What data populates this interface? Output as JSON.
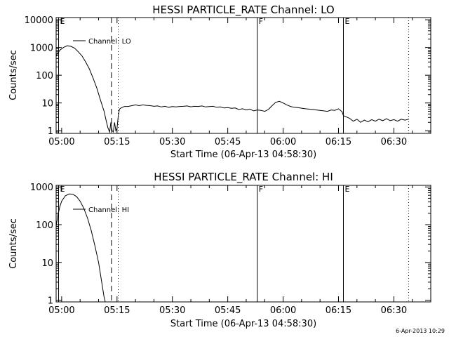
{
  "chart_data": [
    {
      "type": "line",
      "title": "HESSI PARTICLE_RATE Channel: LO",
      "xlabel": "Start Time (06-Apr-13 04:58:30)",
      "ylabel": "Counts/sec",
      "x_unit": "time (HH:MM)",
      "xlim": [
        "04:58:30",
        "06:40:00"
      ],
      "xticks": [
        "05:00",
        "05:15",
        "05:30",
        "05:45",
        "06:00",
        "06:15",
        "06:30"
      ],
      "yscale": "log",
      "ylim": [
        0.8,
        12000
      ],
      "yticks": [
        "1",
        "10",
        "100",
        "1000",
        "10000"
      ],
      "legend": {
        "label": "Channel: LO",
        "placement": "top-left"
      },
      "markers": [
        {
          "label": "E",
          "time": "04:59:10",
          "style": "solid"
        },
        {
          "label": "",
          "time": "05:13:30",
          "style": "dashed"
        },
        {
          "label": "",
          "time": "05:15:20",
          "style": "dotted"
        },
        {
          "label": "F",
          "time": "05:53:00",
          "style": "solid"
        },
        {
          "label": "E",
          "time": "06:16:20",
          "style": "solid"
        },
        {
          "label": "",
          "time": "06:34:00",
          "style": "dotted"
        }
      ],
      "series": [
        {
          "name": "Channel: LO",
          "points": [
            [
              "04:58:30",
              500
            ],
            [
              "04:59:30",
              800
            ],
            [
              "05:00:30",
              1000
            ],
            [
              "05:01:30",
              1150
            ],
            [
              "05:02:30",
              1100
            ],
            [
              "05:03:30",
              950
            ],
            [
              "05:04:30",
              700
            ],
            [
              "05:05:30",
              500
            ],
            [
              "05:06:30",
              300
            ],
            [
              "05:07:30",
              170
            ],
            [
              "05:08:30",
              80
            ],
            [
              "05:09:30",
              35
            ],
            [
              "05:10:30",
              13
            ],
            [
              "05:11:30",
              5
            ],
            [
              "05:12:00",
              2.5
            ],
            [
              "05:12:30",
              1.3
            ],
            [
              "05:13:00",
              0.9
            ],
            [
              "05:13:20",
              2.0
            ],
            [
              "05:13:40",
              1.0
            ],
            [
              "05:14:00",
              0.9
            ],
            [
              "05:14:20",
              2.0
            ],
            [
              "05:14:40",
              1.0
            ],
            [
              "05:15:00",
              1.2
            ],
            [
              "05:15:20",
              3.5
            ],
            [
              "05:15:40",
              6.0
            ],
            [
              "05:16:00",
              6.5
            ],
            [
              "05:17:00",
              7.5
            ],
            [
              "05:18:00",
              7.5
            ],
            [
              "05:19:00",
              8.0
            ],
            [
              "05:20:00",
              8.5
            ],
            [
              "05:21:00",
              8.0
            ],
            [
              "05:22:00",
              8.5
            ],
            [
              "05:23:00",
              8.2
            ],
            [
              "05:24:00",
              8.0
            ],
            [
              "05:25:00",
              7.6
            ],
            [
              "05:26:00",
              7.8
            ],
            [
              "05:27:00",
              7.2
            ],
            [
              "05:28:00",
              7.6
            ],
            [
              "05:29:00",
              7.0
            ],
            [
              "05:30:00",
              7.4
            ],
            [
              "05:31:00",
              7.2
            ],
            [
              "05:32:00",
              7.5
            ],
            [
              "05:33:00",
              7.6
            ],
            [
              "05:34:00",
              7.8
            ],
            [
              "05:35:00",
              7.3
            ],
            [
              "05:36:00",
              7.6
            ],
            [
              "05:37:00",
              7.5
            ],
            [
              "05:38:00",
              7.8
            ],
            [
              "05:39:00",
              7.2
            ],
            [
              "05:40:00",
              7.4
            ],
            [
              "05:41:00",
              7.6
            ],
            [
              "05:42:00",
              7.0
            ],
            [
              "05:43:00",
              7.2
            ],
            [
              "05:44:00",
              6.6
            ],
            [
              "05:45:00",
              6.8
            ],
            [
              "05:46:00",
              6.4
            ],
            [
              "05:47:00",
              6.6
            ],
            [
              "05:48:00",
              5.8
            ],
            [
              "05:49:00",
              6.2
            ],
            [
              "05:50:00",
              5.6
            ],
            [
              "05:51:00",
              6.0
            ],
            [
              "05:52:00",
              5.2
            ],
            [
              "05:53:00",
              5.6
            ],
            [
              "05:54:00",
              5.4
            ],
            [
              "05:55:00",
              5.0
            ],
            [
              "05:56:00",
              5.8
            ],
            [
              "05:57:00",
              8.0
            ],
            [
              "05:58:00",
              10.5
            ],
            [
              "05:59:00",
              11.5
            ],
            [
              "06:00:00",
              10.0
            ],
            [
              "06:01:00",
              8.5
            ],
            [
              "06:02:00",
              7.5
            ],
            [
              "06:03:00",
              7.0
            ],
            [
              "06:04:00",
              6.8
            ],
            [
              "06:05:00",
              6.5
            ],
            [
              "06:06:00",
              6.2
            ],
            [
              "06:07:00",
              6.0
            ],
            [
              "06:08:00",
              5.8
            ],
            [
              "06:09:00",
              5.6
            ],
            [
              "06:10:00",
              5.4
            ],
            [
              "06:11:00",
              5.2
            ],
            [
              "06:12:00",
              5.0
            ],
            [
              "06:13:00",
              5.6
            ],
            [
              "06:14:00",
              5.4
            ],
            [
              "06:15:00",
              6.2
            ],
            [
              "06:16:00",
              4.8
            ],
            [
              "06:16:20",
              3.5
            ],
            [
              "06:17:00",
              3.2
            ],
            [
              "06:18:00",
              2.8
            ],
            [
              "06:19:00",
              2.2
            ],
            [
              "06:20:00",
              2.6
            ],
            [
              "06:21:00",
              2.0
            ],
            [
              "06:22:00",
              2.4
            ],
            [
              "06:23:00",
              2.1
            ],
            [
              "06:24:00",
              2.5
            ],
            [
              "06:25:00",
              2.2
            ],
            [
              "06:26:00",
              2.6
            ],
            [
              "06:27:00",
              2.3
            ],
            [
              "06:28:00",
              2.7
            ],
            [
              "06:29:00",
              2.3
            ],
            [
              "06:30:00",
              2.5
            ],
            [
              "06:31:00",
              2.2
            ],
            [
              "06:32:00",
              2.6
            ],
            [
              "06:33:00",
              2.4
            ],
            [
              "06:34:00",
              2.6
            ]
          ]
        }
      ]
    },
    {
      "type": "line",
      "title": "HESSI PARTICLE_RATE Channel: HI",
      "xlabel": "Start Time (06-Apr-13 04:58:30)",
      "ylabel": "Counts/sec",
      "x_unit": "time (HH:MM)",
      "xlim": [
        "04:58:30",
        "06:40:00"
      ],
      "xticks": [
        "05:00",
        "05:15",
        "05:30",
        "05:45",
        "06:00",
        "06:15",
        "06:30"
      ],
      "yscale": "log",
      "ylim": [
        0.9,
        1100
      ],
      "yticks": [
        "1",
        "10",
        "100",
        "1000"
      ],
      "legend": {
        "label": "Channel: HI",
        "placement": "top-left"
      },
      "markers": [
        {
          "label": "E",
          "time": "04:59:10",
          "style": "solid"
        },
        {
          "label": "",
          "time": "05:13:30",
          "style": "dashed"
        },
        {
          "label": "",
          "time": "05:15:20",
          "style": "dotted"
        },
        {
          "label": "F",
          "time": "05:53:00",
          "style": "solid"
        },
        {
          "label": "E",
          "time": "06:16:20",
          "style": "solid"
        },
        {
          "label": "",
          "time": "06:34:00",
          "style": "dotted"
        }
      ],
      "series": [
        {
          "name": "Channel: HI",
          "points": [
            [
              "04:58:30",
              90
            ],
            [
              "04:59:00",
              180
            ],
            [
              "04:59:30",
              300
            ],
            [
              "05:00:00",
              420
            ],
            [
              "05:01:00",
              580
            ],
            [
              "05:02:00",
              650
            ],
            [
              "05:03:00",
              640
            ],
            [
              "05:04:00",
              560
            ],
            [
              "05:05:00",
              420
            ],
            [
              "05:06:00",
              270
            ],
            [
              "05:07:00",
              150
            ],
            [
              "05:08:00",
              70
            ],
            [
              "05:09:00",
              28
            ],
            [
              "05:10:00",
              10
            ],
            [
              "05:10:30",
              5
            ],
            [
              "05:11:00",
              2.4
            ],
            [
              "05:11:30",
              1.2
            ],
            [
              "05:11:50",
              0.9
            ]
          ]
        }
      ]
    }
  ],
  "footer": {
    "timestamp": "6-Apr-2013 10:29"
  }
}
